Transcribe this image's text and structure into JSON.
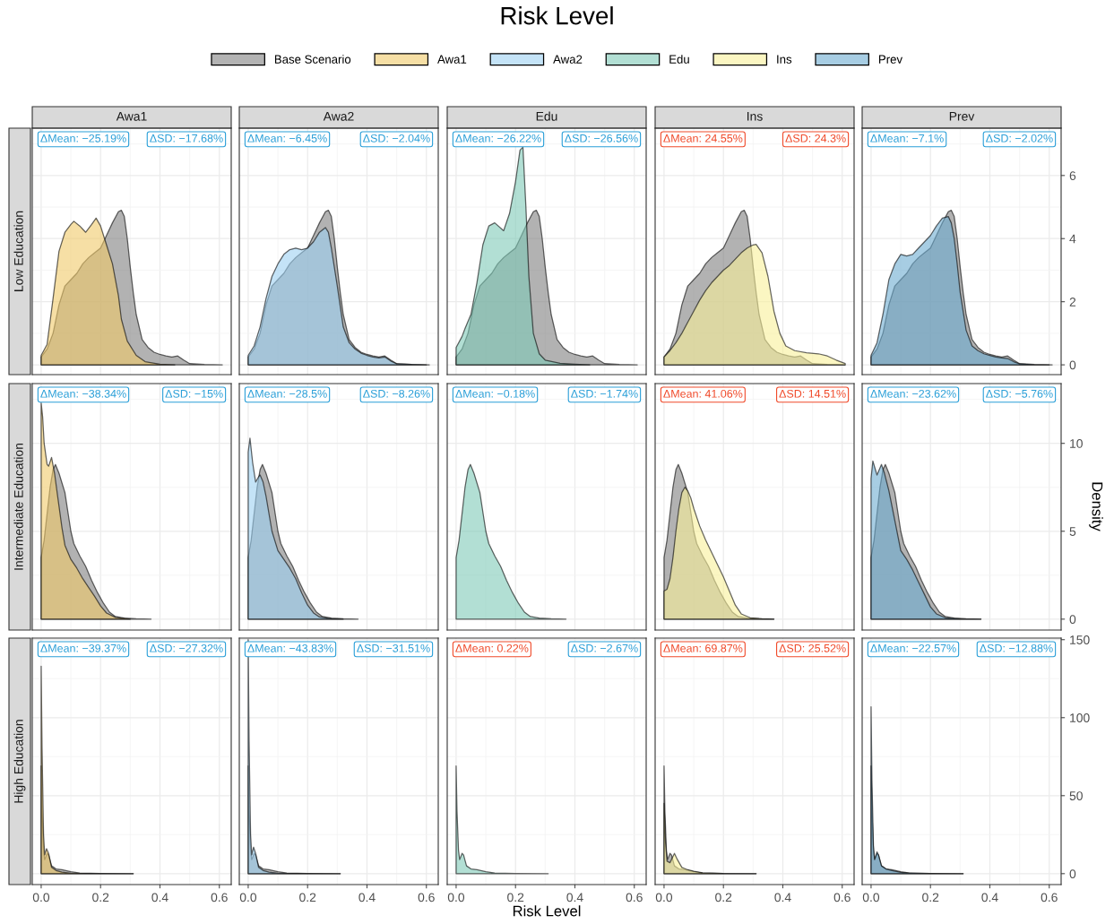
{
  "chart_data": [
    {
      "type": "other",
      "title": "Risk Level",
      "xlabel": "Risk Level",
      "y2label": "Density",
      "legend": "top",
      "series": [
        {
          "name": "Base Scenario",
          "color": "#b3b3b3"
        },
        {
          "name": "Awa1",
          "color": "#f6dfa5"
        },
        {
          "name": "Awa2",
          "color": "#c4e3f7"
        },
        {
          "name": "Edu",
          "color": "#b2dfd4"
        },
        {
          "name": "Ins",
          "color": "#fbf6c2"
        },
        {
          "name": "Prev",
          "color": "#a7cde3"
        }
      ]
    },
    {
      "type": "area",
      "title": "Awa1",
      "ylabel": "Low Education",
      "xlim": [
        -0.03,
        0.64
      ],
      "ylim": [
        -0.31,
        7.5
      ],
      "xticks": [
        0,
        0.2,
        0.4,
        0.6
      ],
      "yticks": [
        0,
        2,
        4,
        6
      ],
      "tick_labels": false,
      "grid": true,
      "annotations": [
        "ΔMean: −25.19%",
        "ΔSD: −17.68%"
      ],
      "series": [
        {
          "color": "#7f7f7f",
          "x": [
            0,
            0.02,
            0.04,
            0.06,
            0.08,
            0.1,
            0.12,
            0.14,
            0.16,
            0.18,
            0.2,
            0.22,
            0.24,
            0.26,
            0.27,
            0.28,
            0.29,
            0.3,
            0.31,
            0.32,
            0.34,
            0.36,
            0.38,
            0.4,
            0.42,
            0.44,
            0.46,
            0.48,
            0.5,
            0.55,
            0.61
          ],
          "values": [
            0.25,
            0.5,
            1.0,
            1.9,
            2.5,
            2.7,
            2.9,
            3.2,
            3.4,
            3.55,
            3.7,
            4.1,
            4.5,
            4.85,
            4.9,
            4.7,
            4.0,
            3.1,
            2.3,
            1.6,
            0.8,
            0.55,
            0.4,
            0.33,
            0.28,
            0.25,
            0.28,
            0.15,
            0.04,
            0.01,
            0
          ]
        },
        {
          "color": "#f0ca69",
          "x": [
            0,
            0.02,
            0.04,
            0.06,
            0.08,
            0.1,
            0.11,
            0.13,
            0.15,
            0.17,
            0.185,
            0.2,
            0.22,
            0.24,
            0.26,
            0.27,
            0.29,
            0.32,
            0.35,
            0.4,
            0.45
          ],
          "values": [
            0.3,
            0.65,
            2.1,
            3.6,
            4.2,
            4.45,
            4.55,
            4.4,
            4.2,
            4.45,
            4.65,
            4.4,
            3.8,
            3.2,
            2.2,
            1.45,
            0.75,
            0.3,
            0.1,
            0.02,
            0
          ]
        }
      ]
    },
    {
      "type": "area",
      "title": "Awa2",
      "xlim": [
        -0.03,
        0.64
      ],
      "ylim": [
        -0.31,
        7.5
      ],
      "xticks": [
        0,
        0.2,
        0.4,
        0.6
      ],
      "yticks": [
        0,
        2,
        4,
        6
      ],
      "tick_labels": false,
      "grid": true,
      "annotations": [
        "ΔMean: −6.45%",
        "ΔSD: −2.04%"
      ],
      "series": [
        {
          "color": "#7f7f7f",
          "x": [
            0,
            0.02,
            0.04,
            0.06,
            0.08,
            0.1,
            0.12,
            0.14,
            0.16,
            0.18,
            0.2,
            0.22,
            0.24,
            0.26,
            0.27,
            0.28,
            0.29,
            0.3,
            0.31,
            0.32,
            0.34,
            0.36,
            0.38,
            0.4,
            0.42,
            0.44,
            0.46,
            0.48,
            0.5,
            0.55,
            0.61
          ],
          "values": [
            0.25,
            0.5,
            1.0,
            1.9,
            2.5,
            2.7,
            2.9,
            3.2,
            3.4,
            3.55,
            3.7,
            4.1,
            4.5,
            4.85,
            4.9,
            4.7,
            4.0,
            3.1,
            2.3,
            1.6,
            0.8,
            0.55,
            0.4,
            0.33,
            0.28,
            0.25,
            0.28,
            0.15,
            0.04,
            0.01,
            0
          ]
        },
        {
          "color": "#9dd0f2",
          "x": [
            0,
            0.02,
            0.04,
            0.06,
            0.08,
            0.1,
            0.12,
            0.14,
            0.16,
            0.18,
            0.2,
            0.22,
            0.24,
            0.26,
            0.27,
            0.28,
            0.3,
            0.32,
            0.34,
            0.36,
            0.38,
            0.4,
            0.42,
            0.44,
            0.46,
            0.48,
            0.5,
            0.55,
            0.6
          ],
          "values": [
            0.3,
            0.6,
            1.2,
            2.1,
            2.8,
            3.2,
            3.5,
            3.65,
            3.7,
            3.65,
            3.7,
            3.9,
            4.2,
            4.35,
            4.2,
            3.7,
            2.5,
            1.2,
            0.7,
            0.5,
            0.37,
            0.3,
            0.25,
            0.22,
            0.25,
            0.12,
            0.03,
            0.01,
            0
          ]
        }
      ]
    },
    {
      "type": "area",
      "title": "Edu",
      "xlim": [
        -0.03,
        0.64
      ],
      "ylim": [
        -0.31,
        7.5
      ],
      "xticks": [
        0,
        0.2,
        0.4,
        0.6
      ],
      "yticks": [
        0,
        2,
        4,
        6
      ],
      "tick_labels": false,
      "grid": true,
      "annotations": [
        "ΔMean: −26.22%",
        "ΔSD: −26.56%"
      ],
      "series": [
        {
          "color": "#7f7f7f",
          "x": [
            0,
            0.02,
            0.04,
            0.06,
            0.08,
            0.1,
            0.12,
            0.14,
            0.16,
            0.18,
            0.2,
            0.22,
            0.24,
            0.26,
            0.27,
            0.28,
            0.29,
            0.3,
            0.31,
            0.32,
            0.34,
            0.36,
            0.38,
            0.4,
            0.42,
            0.44,
            0.46,
            0.48,
            0.5,
            0.55,
            0.61
          ],
          "values": [
            0.25,
            0.5,
            1.0,
            1.9,
            2.5,
            2.7,
            2.9,
            3.2,
            3.4,
            3.55,
            3.7,
            4.1,
            4.5,
            4.85,
            4.9,
            4.7,
            4.0,
            3.1,
            2.3,
            1.6,
            0.8,
            0.55,
            0.4,
            0.33,
            0.28,
            0.25,
            0.28,
            0.15,
            0.04,
            0.01,
            0
          ]
        },
        {
          "color": "#7fcab7",
          "x": [
            0,
            0.02,
            0.03,
            0.05,
            0.07,
            0.09,
            0.11,
            0.13,
            0.16,
            0.18,
            0.2,
            0.215,
            0.225,
            0.235,
            0.245,
            0.26,
            0.28,
            0.3,
            0.35,
            0.4,
            0.45
          ],
          "values": [
            0.55,
            0.9,
            1.15,
            1.6,
            2.6,
            3.8,
            4.4,
            4.5,
            4.25,
            4.8,
            5.8,
            6.8,
            6.9,
            5.0,
            2.8,
            1.0,
            0.35,
            0.15,
            0.05,
            0.02,
            0
          ]
        }
      ]
    },
    {
      "type": "area",
      "title": "Ins",
      "xlim": [
        -0.03,
        0.64
      ],
      "ylim": [
        -0.31,
        7.5
      ],
      "xticks": [
        0,
        0.2,
        0.4,
        0.6
      ],
      "yticks": [
        0,
        2,
        4,
        6
      ],
      "tick_labels": false,
      "grid": true,
      "annotations": [
        "ΔMean: 24.55%",
        "ΔSD: 24.3%"
      ],
      "series": [
        {
          "color": "#7f7f7f",
          "x": [
            0,
            0.02,
            0.04,
            0.06,
            0.08,
            0.1,
            0.12,
            0.14,
            0.16,
            0.18,
            0.2,
            0.22,
            0.24,
            0.26,
            0.27,
            0.28,
            0.29,
            0.3,
            0.31,
            0.32,
            0.34,
            0.36,
            0.38,
            0.4,
            0.42,
            0.44,
            0.46,
            0.48,
            0.5,
            0.55,
            0.61
          ],
          "values": [
            0.25,
            0.5,
            1.0,
            1.9,
            2.5,
            2.7,
            2.9,
            3.2,
            3.4,
            3.55,
            3.7,
            4.1,
            4.5,
            4.85,
            4.9,
            4.7,
            4.0,
            3.1,
            2.3,
            1.6,
            0.8,
            0.55,
            0.4,
            0.33,
            0.28,
            0.25,
            0.28,
            0.15,
            0.04,
            0.01,
            0
          ]
        },
        {
          "color": "#f8f099",
          "x": [
            0,
            0.02,
            0.04,
            0.06,
            0.08,
            0.1,
            0.12,
            0.14,
            0.16,
            0.18,
            0.2,
            0.22,
            0.24,
            0.26,
            0.28,
            0.3,
            0.31,
            0.33,
            0.35,
            0.37,
            0.39,
            0.41,
            0.44,
            0.48,
            0.52,
            0.55,
            0.58,
            0.61
          ],
          "values": [
            0.25,
            0.45,
            0.7,
            1.0,
            1.35,
            1.7,
            2.05,
            2.35,
            2.6,
            2.8,
            3.0,
            3.15,
            3.35,
            3.55,
            3.7,
            3.8,
            3.82,
            3.55,
            2.8,
            1.7,
            1.0,
            0.6,
            0.45,
            0.38,
            0.35,
            0.28,
            0.15,
            0.04
          ]
        }
      ]
    },
    {
      "type": "area",
      "title": "Prev",
      "xlim": [
        -0.03,
        0.64
      ],
      "ylim": [
        -0.31,
        7.5
      ],
      "xticks": [
        0,
        0.2,
        0.4,
        0.6
      ],
      "yticks": [
        0,
        2,
        4,
        6
      ],
      "tick_labels": "y",
      "grid": true,
      "annotations": [
        "ΔMean: −7.1%",
        "ΔSD: −2.02%"
      ],
      "series": [
        {
          "color": "#7f7f7f",
          "x": [
            0,
            0.02,
            0.04,
            0.06,
            0.08,
            0.1,
            0.12,
            0.14,
            0.16,
            0.18,
            0.2,
            0.22,
            0.24,
            0.26,
            0.27,
            0.28,
            0.29,
            0.3,
            0.31,
            0.32,
            0.34,
            0.36,
            0.38,
            0.4,
            0.42,
            0.44,
            0.46,
            0.48,
            0.5,
            0.55,
            0.61
          ],
          "values": [
            0.25,
            0.5,
            1.0,
            1.9,
            2.5,
            2.7,
            2.9,
            3.2,
            3.4,
            3.55,
            3.7,
            4.1,
            4.5,
            4.85,
            4.9,
            4.7,
            4.0,
            3.1,
            2.3,
            1.6,
            0.8,
            0.55,
            0.4,
            0.33,
            0.28,
            0.25,
            0.28,
            0.15,
            0.04,
            0.01,
            0
          ]
        },
        {
          "color": "#6dacd0",
          "x": [
            0,
            0.02,
            0.04,
            0.06,
            0.08,
            0.1,
            0.12,
            0.14,
            0.16,
            0.18,
            0.2,
            0.22,
            0.24,
            0.26,
            0.27,
            0.28,
            0.29,
            0.3,
            0.32,
            0.34,
            0.36,
            0.38,
            0.4,
            0.42,
            0.44,
            0.46,
            0.48,
            0.5,
            0.55,
            0.6
          ],
          "values": [
            0.3,
            0.7,
            1.6,
            2.7,
            3.2,
            3.5,
            3.45,
            3.5,
            3.7,
            3.9,
            4.1,
            4.4,
            4.65,
            4.7,
            4.5,
            4.0,
            3.2,
            2.3,
            1.1,
            0.6,
            0.45,
            0.35,
            0.3,
            0.25,
            0.22,
            0.2,
            0.1,
            0.03,
            0,
            0
          ]
        }
      ]
    },
    {
      "type": "area",
      "ylabel": "Intermediate Education",
      "xlim": [
        -0.03,
        0.64
      ],
      "ylim": [
        -0.62,
        13.4
      ],
      "xticks": [
        0,
        0.2,
        0.4,
        0.6
      ],
      "yticks": [
        0,
        5,
        10
      ],
      "tick_labels": false,
      "grid": true,
      "annotations": [
        "ΔMean: −38.34%",
        "ΔSD: −15%"
      ],
      "series": [
        {
          "color": "#7f7f7f",
          "x": [
            0,
            0.01,
            0.02,
            0.03,
            0.04,
            0.048,
            0.06,
            0.08,
            0.1,
            0.11,
            0.13,
            0.15,
            0.17,
            0.19,
            0.21,
            0.23,
            0.25,
            0.28,
            0.32,
            0.37
          ],
          "values": [
            3.5,
            4.5,
            6.0,
            7.5,
            8.5,
            8.8,
            8.3,
            7.2,
            5.0,
            4.3,
            3.6,
            3.0,
            2.2,
            1.5,
            0.9,
            0.4,
            0.15,
            0.06,
            0.02,
            0
          ]
        },
        {
          "color": "#f0ca69",
          "x": [
            0,
            0.005,
            0.01,
            0.02,
            0.025,
            0.035,
            0.045,
            0.057,
            0.07,
            0.08,
            0.1,
            0.12,
            0.14,
            0.16,
            0.18,
            0.2,
            0.22,
            0.25,
            0.3
          ],
          "values": [
            12.3,
            11.5,
            10.0,
            8.8,
            8.7,
            9.2,
            8.3,
            6.8,
            5.2,
            4.2,
            3.4,
            2.9,
            2.3,
            1.8,
            1.3,
            0.75,
            0.35,
            0.1,
            0
          ]
        }
      ]
    },
    {
      "type": "area",
      "xlim": [
        -0.03,
        0.64
      ],
      "ylim": [
        -0.62,
        13.4
      ],
      "xticks": [
        0,
        0.2,
        0.4,
        0.6
      ],
      "yticks": [
        0,
        5,
        10
      ],
      "tick_labels": false,
      "grid": true,
      "annotations": [
        "ΔMean: −28.5%",
        "ΔSD: −8.26%"
      ],
      "series": [
        {
          "color": "#7f7f7f",
          "x": [
            0,
            0.01,
            0.02,
            0.03,
            0.04,
            0.048,
            0.06,
            0.08,
            0.1,
            0.11,
            0.13,
            0.15,
            0.17,
            0.19,
            0.21,
            0.23,
            0.25,
            0.28,
            0.32,
            0.37
          ],
          "values": [
            3.5,
            4.5,
            6.0,
            7.5,
            8.5,
            8.8,
            8.3,
            7.2,
            5.0,
            4.3,
            3.6,
            3.0,
            2.2,
            1.5,
            0.9,
            0.4,
            0.15,
            0.06,
            0.02,
            0
          ]
        },
        {
          "color": "#9dd0f2",
          "x": [
            0,
            0.006,
            0.015,
            0.025,
            0.035,
            0.04,
            0.05,
            0.06,
            0.08,
            0.1,
            0.12,
            0.14,
            0.16,
            0.18,
            0.2,
            0.22,
            0.24,
            0.28,
            0.32
          ],
          "values": [
            9.5,
            10.3,
            8.9,
            7.8,
            8.1,
            8.2,
            7.8,
            7.0,
            5.0,
            3.9,
            3.4,
            2.9,
            2.3,
            1.5,
            0.8,
            0.35,
            0.12,
            0.02,
            0
          ]
        }
      ]
    },
    {
      "type": "area",
      "xlim": [
        -0.03,
        0.64
      ],
      "ylim": [
        -0.62,
        13.4
      ],
      "xticks": [
        0,
        0.2,
        0.4,
        0.6
      ],
      "yticks": [
        0,
        5,
        10
      ],
      "tick_labels": false,
      "grid": true,
      "annotations": [
        "ΔMean: −0.18%",
        "ΔSD: −1.74%"
      ],
      "series": [
        {
          "color": "#7fcab7",
          "x": [
            0,
            0.01,
            0.02,
            0.03,
            0.04,
            0.048,
            0.06,
            0.08,
            0.1,
            0.11,
            0.13,
            0.15,
            0.17,
            0.19,
            0.21,
            0.23,
            0.25,
            0.28,
            0.32,
            0.37
          ],
          "values": [
            3.5,
            4.5,
            6.0,
            7.5,
            8.5,
            8.8,
            8.3,
            7.2,
            5.0,
            4.3,
            3.6,
            3.0,
            2.2,
            1.5,
            0.9,
            0.4,
            0.15,
            0.06,
            0.02,
            0
          ]
        }
      ]
    },
    {
      "type": "area",
      "xlim": [
        -0.03,
        0.64
      ],
      "ylim": [
        -0.62,
        13.4
      ],
      "xticks": [
        0,
        0.2,
        0.4,
        0.6
      ],
      "yticks": [
        0,
        5,
        10
      ],
      "tick_labels": false,
      "grid": true,
      "annotations": [
        "ΔMean: 41.06%",
        "ΔSD: 14.51%"
      ],
      "series": [
        {
          "color": "#7f7f7f",
          "x": [
            0,
            0.01,
            0.02,
            0.03,
            0.04,
            0.048,
            0.06,
            0.08,
            0.1,
            0.11,
            0.13,
            0.15,
            0.17,
            0.19,
            0.21,
            0.23,
            0.25,
            0.28,
            0.32,
            0.37
          ],
          "values": [
            3.5,
            4.5,
            6.0,
            7.5,
            8.5,
            8.8,
            8.3,
            7.2,
            5.0,
            4.3,
            3.6,
            3.0,
            2.2,
            1.5,
            0.9,
            0.4,
            0.15,
            0.06,
            0.02,
            0
          ]
        },
        {
          "color": "#f8f099",
          "x": [
            0,
            0.01,
            0.02,
            0.03,
            0.04,
            0.05,
            0.06,
            0.07,
            0.08,
            0.09,
            0.1,
            0.12,
            0.14,
            0.16,
            0.18,
            0.2,
            0.22,
            0.24,
            0.26,
            0.29,
            0.33,
            0.37
          ],
          "values": [
            1.6,
            1.7,
            2.3,
            3.5,
            5.0,
            6.3,
            7.2,
            7.5,
            7.3,
            6.9,
            6.3,
            5.3,
            4.5,
            3.8,
            3.1,
            2.4,
            1.6,
            0.8,
            0.3,
            0.08,
            0.02,
            0
          ]
        }
      ]
    },
    {
      "type": "area",
      "xlim": [
        -0.03,
        0.64
      ],
      "ylim": [
        -0.62,
        13.4
      ],
      "xticks": [
        0,
        0.2,
        0.4,
        0.6
      ],
      "yticks": [
        0,
        5,
        10
      ],
      "tick_labels": "y",
      "grid": true,
      "annotations": [
        "ΔMean: −23.62%",
        "ΔSD: −5.76%"
      ],
      "series": [
        {
          "color": "#7f7f7f",
          "x": [
            0,
            0.01,
            0.02,
            0.03,
            0.04,
            0.048,
            0.06,
            0.08,
            0.1,
            0.11,
            0.13,
            0.15,
            0.17,
            0.19,
            0.21,
            0.23,
            0.25,
            0.28,
            0.32,
            0.37
          ],
          "values": [
            3.5,
            4.5,
            6.0,
            7.5,
            8.5,
            8.8,
            8.3,
            7.2,
            5.0,
            4.3,
            3.6,
            3.0,
            2.2,
            1.5,
            0.9,
            0.4,
            0.15,
            0.06,
            0.02,
            0
          ]
        },
        {
          "color": "#6dacd0",
          "x": [
            0,
            0.006,
            0.02,
            0.035,
            0.045,
            0.06,
            0.08,
            0.1,
            0.12,
            0.14,
            0.16,
            0.18,
            0.2,
            0.22,
            0.25,
            0.3,
            0.37
          ],
          "values": [
            8.0,
            9.0,
            8.2,
            8.8,
            8.3,
            7.3,
            5.6,
            3.9,
            3.4,
            2.8,
            2.1,
            1.4,
            0.7,
            0.3,
            0.08,
            0.01,
            0
          ]
        }
      ]
    },
    {
      "type": "area",
      "ylabel": "High Education",
      "xlim": [
        -0.03,
        0.64
      ],
      "ylim": [
        -7,
        151
      ],
      "xticks": [
        {
          "value": 0,
          "label": "0.0"
        },
        {
          "value": 0.2,
          "label": "0.2"
        },
        {
          "value": 0.4,
          "label": "0.4"
        },
        {
          "value": 0.6,
          "label": "0.6"
        }
      ],
      "yticks": [
        0,
        50,
        100,
        150
      ],
      "tick_labels": "x",
      "grid": true,
      "annotations": [
        "ΔMean: −39.37%",
        "ΔSD: −27.32%"
      ],
      "series": [
        {
          "color": "#7f7f7f",
          "x": [
            0,
            0.003,
            0.008,
            0.012,
            0.02,
            0.025,
            0.035,
            0.05,
            0.07,
            0.1,
            0.13,
            0.2,
            0.31
          ],
          "values": [
            69,
            40,
            15,
            9,
            13,
            12,
            5,
            3,
            2.5,
            1.2,
            0.4,
            0.1,
            0
          ]
        },
        {
          "color": "#f0ca69",
          "x": [
            0,
            0.003,
            0.008,
            0.012,
            0.018,
            0.025,
            0.035,
            0.05,
            0.07,
            0.1,
            0.15,
            0.31
          ],
          "values": [
            133,
            80,
            25,
            12,
            16,
            13,
            4,
            2,
            1,
            0.3,
            0.1,
            0
          ]
        }
      ]
    },
    {
      "type": "area",
      "xlim": [
        -0.03,
        0.64
      ],
      "ylim": [
        -7,
        151
      ],
      "xticks": [
        {
          "value": 0,
          "label": "0.0"
        },
        {
          "value": 0.2,
          "label": "0.2"
        },
        {
          "value": 0.4,
          "label": "0.4"
        },
        {
          "value": 0.6,
          "label": "0.6"
        }
      ],
      "yticks": [
        0,
        50,
        100,
        150
      ],
      "tick_labels": "x",
      "grid": true,
      "annotations": [
        "ΔMean: −43.83%",
        "ΔSD: −31.51%"
      ],
      "series": [
        {
          "color": "#7f7f7f",
          "x": [
            0,
            0.003,
            0.008,
            0.012,
            0.02,
            0.025,
            0.035,
            0.05,
            0.07,
            0.1,
            0.13,
            0.2,
            0.31
          ],
          "values": [
            69,
            40,
            15,
            9,
            13,
            12,
            5,
            3,
            2.5,
            1.2,
            0.4,
            0.1,
            0
          ]
        },
        {
          "color": "#9dd0f2",
          "x": [
            0,
            0.003,
            0.008,
            0.012,
            0.018,
            0.025,
            0.035,
            0.05,
            0.07,
            0.1,
            0.15,
            0.31
          ],
          "values": [
            150,
            85,
            25,
            12,
            17,
            13,
            4,
            2,
            1,
            0.3,
            0.1,
            0
          ]
        }
      ]
    },
    {
      "type": "area",
      "xlim": [
        -0.03,
        0.64
      ],
      "ylim": [
        -7,
        151
      ],
      "xticks": [
        {
          "value": 0,
          "label": "0.0"
        },
        {
          "value": 0.2,
          "label": "0.2"
        },
        {
          "value": 0.4,
          "label": "0.4"
        },
        {
          "value": 0.6,
          "label": "0.6"
        }
      ],
      "yticks": [
        0,
        50,
        100,
        150
      ],
      "tick_labels": "x",
      "grid": true,
      "annotations": [
        "ΔMean: 0.22%",
        "ΔSD: −2.67%"
      ],
      "series": [
        {
          "color": "#7fcab7",
          "x": [
            0,
            0.003,
            0.008,
            0.012,
            0.02,
            0.025,
            0.035,
            0.05,
            0.07,
            0.1,
            0.13,
            0.2,
            0.31
          ],
          "values": [
            69,
            40,
            15,
            9,
            13,
            12,
            5,
            3,
            2.5,
            1.2,
            0.4,
            0.1,
            0
          ]
        }
      ]
    },
    {
      "type": "area",
      "xlim": [
        -0.03,
        0.64
      ],
      "ylim": [
        -7,
        151
      ],
      "xticks": [
        {
          "value": 0,
          "label": "0.0"
        },
        {
          "value": 0.2,
          "label": "0.2"
        },
        {
          "value": 0.4,
          "label": "0.4"
        },
        {
          "value": 0.6,
          "label": "0.6"
        }
      ],
      "yticks": [
        0,
        50,
        100,
        150
      ],
      "tick_labels": "x",
      "grid": true,
      "annotations": [
        "ΔMean: 69.87%",
        "ΔSD: 25.52%"
      ],
      "series": [
        {
          "color": "#7f7f7f",
          "x": [
            0,
            0.003,
            0.008,
            0.012,
            0.02,
            0.025,
            0.035,
            0.05,
            0.07,
            0.1,
            0.13,
            0.2,
            0.31
          ],
          "values": [
            69,
            40,
            15,
            9,
            13,
            12,
            5,
            3,
            2.5,
            1.2,
            0.4,
            0.1,
            0
          ]
        },
        {
          "color": "#f8f099",
          "x": [
            0,
            0.005,
            0.01,
            0.02,
            0.035,
            0.045,
            0.06,
            0.08,
            0.1,
            0.13,
            0.2,
            0.31
          ],
          "values": [
            45,
            20,
            8,
            7,
            13,
            9,
            4,
            2.5,
            1.5,
            0.5,
            0.1,
            0
          ]
        }
      ]
    },
    {
      "type": "area",
      "xlim": [
        -0.03,
        0.64
      ],
      "ylim": [
        -7,
        151
      ],
      "xticks": [
        {
          "value": 0,
          "label": "0.0"
        },
        {
          "value": 0.2,
          "label": "0.2"
        },
        {
          "value": 0.4,
          "label": "0.4"
        },
        {
          "value": 0.6,
          "label": "0.6"
        }
      ],
      "yticks": [
        0,
        50,
        100,
        150
      ],
      "grid": true,
      "annotations": [
        "ΔMean: −22.57%",
        "ΔSD: −12.88%"
      ],
      "series": [
        {
          "color": "#7f7f7f",
          "x": [
            0,
            0.003,
            0.008,
            0.012,
            0.02,
            0.025,
            0.035,
            0.05,
            0.07,
            0.1,
            0.13,
            0.2,
            0.31
          ],
          "values": [
            69,
            40,
            15,
            9,
            13,
            12,
            5,
            3,
            2.5,
            1.2,
            0.4,
            0.1,
            0
          ]
        },
        {
          "color": "#6dacd0",
          "x": [
            0,
            0.003,
            0.008,
            0.012,
            0.02,
            0.025,
            0.035,
            0.05,
            0.07,
            0.1,
            0.13,
            0.2,
            0.31
          ],
          "values": [
            107,
            60,
            18,
            9,
            14,
            12,
            5,
            3,
            2,
            0.8,
            0.3,
            0.1,
            0
          ]
        }
      ]
    }
  ]
}
